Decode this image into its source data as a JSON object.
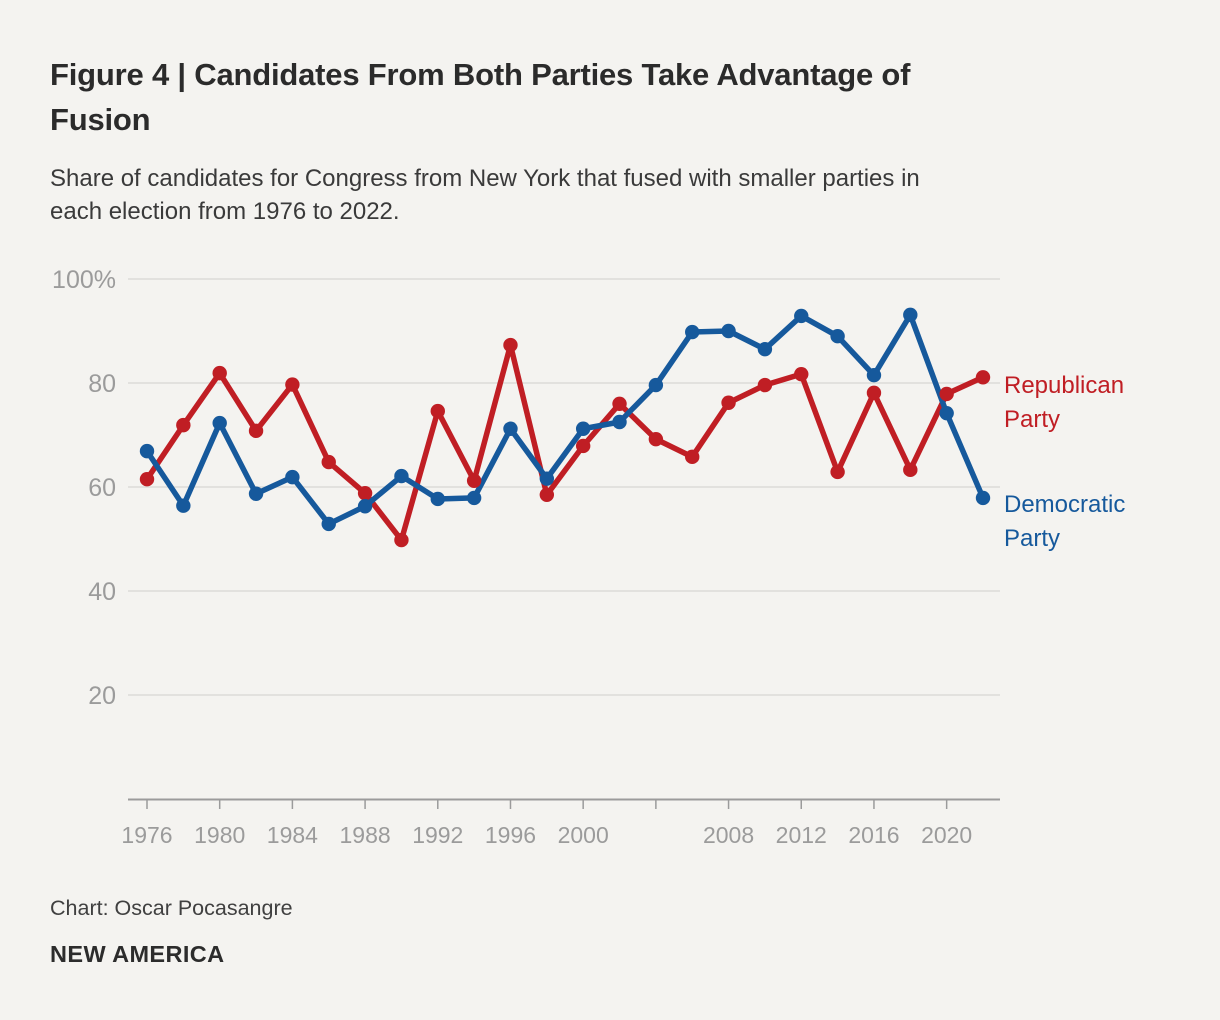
{
  "header": {
    "title_lines": [
      "Figure 4 | Candidates From Both Parties Take Advantage of",
      "Fusion"
    ],
    "subtitle_lines": [
      "Share of candidates for Congress from New York that fused with smaller parties in",
      "each election from 1976 to 2022."
    ]
  },
  "chart_data": {
    "type": "line",
    "title": "Figure 4 | Candidates From Both Parties Take Advantage of Fusion",
    "subtitle": "Share of candidates for Congress from New York that fused with smaller parties in each election from 1976 to 2022.",
    "x": [
      1976,
      1978,
      1980,
      1982,
      1984,
      1986,
      1988,
      1990,
      1992,
      1994,
      1996,
      1998,
      2000,
      2002,
      2004,
      2006,
      2008,
      2010,
      2012,
      2014,
      2016,
      2018,
      2020,
      2022
    ],
    "series": [
      {
        "name": "Republican Party",
        "color": "#c01e24",
        "values": [
          61.5,
          71.9,
          81.9,
          70.8,
          79.7,
          64.8,
          58.8,
          49.8,
          74.6,
          61.2,
          87.3,
          58.5,
          67.9,
          76.0,
          69.2,
          65.8,
          76.2,
          79.6,
          81.7,
          62.9,
          78.1,
          63.3,
          77.9,
          81.1
        ]
      },
      {
        "name": "Democratic Party",
        "color": "#16599c",
        "values": [
          66.9,
          56.4,
          72.3,
          58.7,
          61.9,
          52.9,
          56.3,
          62.1,
          57.7,
          57.9,
          71.2,
          61.6,
          71.2,
          72.5,
          79.6,
          89.8,
          90.0,
          86.5,
          92.9,
          89.0,
          81.5,
          93.1,
          74.2,
          57.9
        ]
      }
    ],
    "ylim": [
      0,
      100
    ],
    "yticks": [
      20,
      40,
      60,
      80,
      100
    ],
    "ytick_labels": [
      "20",
      "40",
      "60",
      "80",
      "100%"
    ],
    "xticks": [
      {
        "year": 1976,
        "label": "1976"
      },
      {
        "year": 1980,
        "label": "1980"
      },
      {
        "year": 1984,
        "label": "1984"
      },
      {
        "year": 1988,
        "label": "1988"
      },
      {
        "year": 1992,
        "label": "1992"
      },
      {
        "year": 1996,
        "label": "1996"
      },
      {
        "year": 2000,
        "label": "2000"
      },
      {
        "year": 2004,
        "label": ""
      },
      {
        "year": 2008,
        "label": "2008"
      },
      {
        "year": 2012,
        "label": "2012"
      },
      {
        "year": 2016,
        "label": "2016"
      },
      {
        "year": 2020,
        "label": "2020"
      }
    ],
    "grid": "horizontal",
    "legend_position": "right-of-line-ends",
    "style": {
      "background": "#f4f3f0",
      "grid_color": "#dcdbd7",
      "axis_color": "#9b9b9b"
    }
  },
  "legend": {
    "republican": "Republican Party",
    "democratic": "Democratic Party"
  },
  "footer": {
    "credit": "Chart: Oscar Pocasangre",
    "org": "NEW AMERICA"
  }
}
